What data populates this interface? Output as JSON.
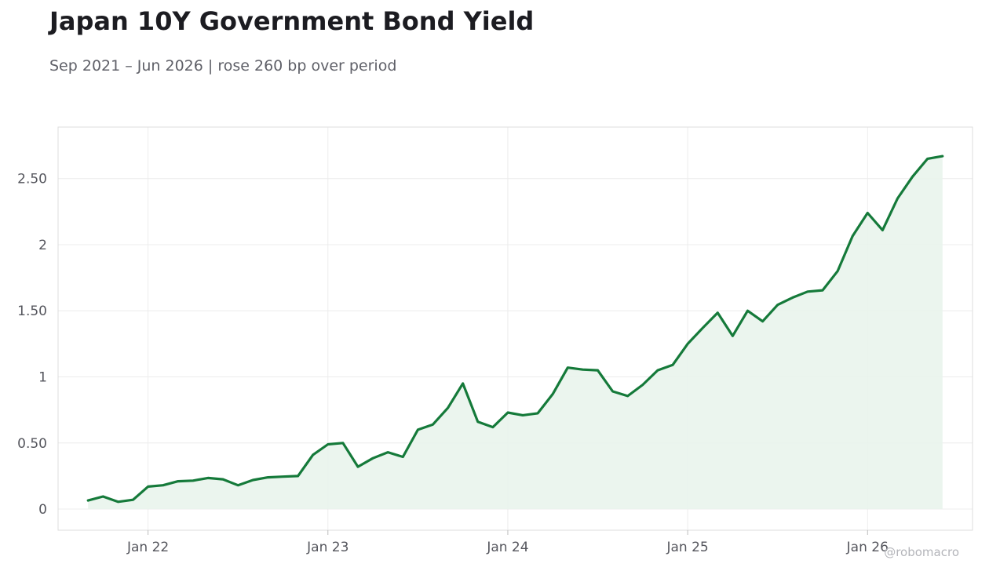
{
  "title": "Japan 10Y Government Bond Yield",
  "subtitle": "Sep 2021 – Jun 2026 | rose 260 bp over period",
  "watermark": "@robomacro",
  "colors": {
    "line": "#157a3a",
    "fill": "#e9f4ec",
    "grid": "#ececec",
    "frame": "#dedede"
  },
  "chart_data": {
    "type": "area",
    "x": [
      "2021-09",
      "2021-10",
      "2021-11",
      "2021-12",
      "2022-01",
      "2022-02",
      "2022-03",
      "2022-04",
      "2022-05",
      "2022-06",
      "2022-07",
      "2022-08",
      "2022-09",
      "2022-10",
      "2022-11",
      "2022-12",
      "2023-01",
      "2023-02",
      "2023-03",
      "2023-04",
      "2023-05",
      "2023-06",
      "2023-07",
      "2023-08",
      "2023-09",
      "2023-10",
      "2023-11",
      "2023-12",
      "2024-01",
      "2024-02",
      "2024-03",
      "2024-04",
      "2024-05",
      "2024-06",
      "2024-07",
      "2024-08",
      "2024-09",
      "2024-10",
      "2024-11",
      "2024-12",
      "2025-01",
      "2025-02",
      "2025-03",
      "2025-04",
      "2025-05",
      "2025-06",
      "2025-07",
      "2025-08",
      "2025-09",
      "2025-10",
      "2025-11",
      "2025-12",
      "2026-01",
      "2026-02",
      "2026-03",
      "2026-04",
      "2026-05",
      "2026-06"
    ],
    "series": [
      {
        "values": [
          0.065,
          0.095,
          0.055,
          0.07,
          0.17,
          0.18,
          0.21,
          0.215,
          0.235,
          0.225,
          0.18,
          0.22,
          0.24,
          0.245,
          0.25,
          0.41,
          0.49,
          0.5,
          0.32,
          0.385,
          0.43,
          0.395,
          0.6,
          0.64,
          0.765,
          0.95,
          0.66,
          0.62,
          0.73,
          0.71,
          0.725,
          0.87,
          1.07,
          1.055,
          1.05,
          0.89,
          0.855,
          0.94,
          1.05,
          1.09,
          1.25,
          1.37,
          1.485,
          1.31,
          1.5,
          1.42,
          1.545,
          1.6,
          1.645,
          1.655,
          1.8,
          2.065,
          2.24,
          2.11,
          2.35,
          2.515,
          2.65,
          2.67
        ]
      }
    ],
    "x_ticks": [
      {
        "date": "2022-01",
        "label": "Jan 22"
      },
      {
        "date": "2023-01",
        "label": "Jan 23"
      },
      {
        "date": "2024-01",
        "label": "Jan 24"
      },
      {
        "date": "2025-01",
        "label": "Jan 25"
      },
      {
        "date": "2026-01",
        "label": "Jan 26"
      }
    ],
    "y_ticks": [
      {
        "value": 0,
        "label": "0"
      },
      {
        "value": 0.5,
        "label": "0.50"
      },
      {
        "value": 1,
        "label": "1"
      },
      {
        "value": 1.5,
        "label": "1.50"
      },
      {
        "value": 2,
        "label": "2"
      },
      {
        "value": 2.5,
        "label": "2.50"
      }
    ],
    "ylim": [
      -0.16,
      2.89
    ],
    "xlim": [
      "2021-07",
      "2026-08"
    ],
    "grid": true,
    "xlabel": "",
    "ylabel": ""
  }
}
